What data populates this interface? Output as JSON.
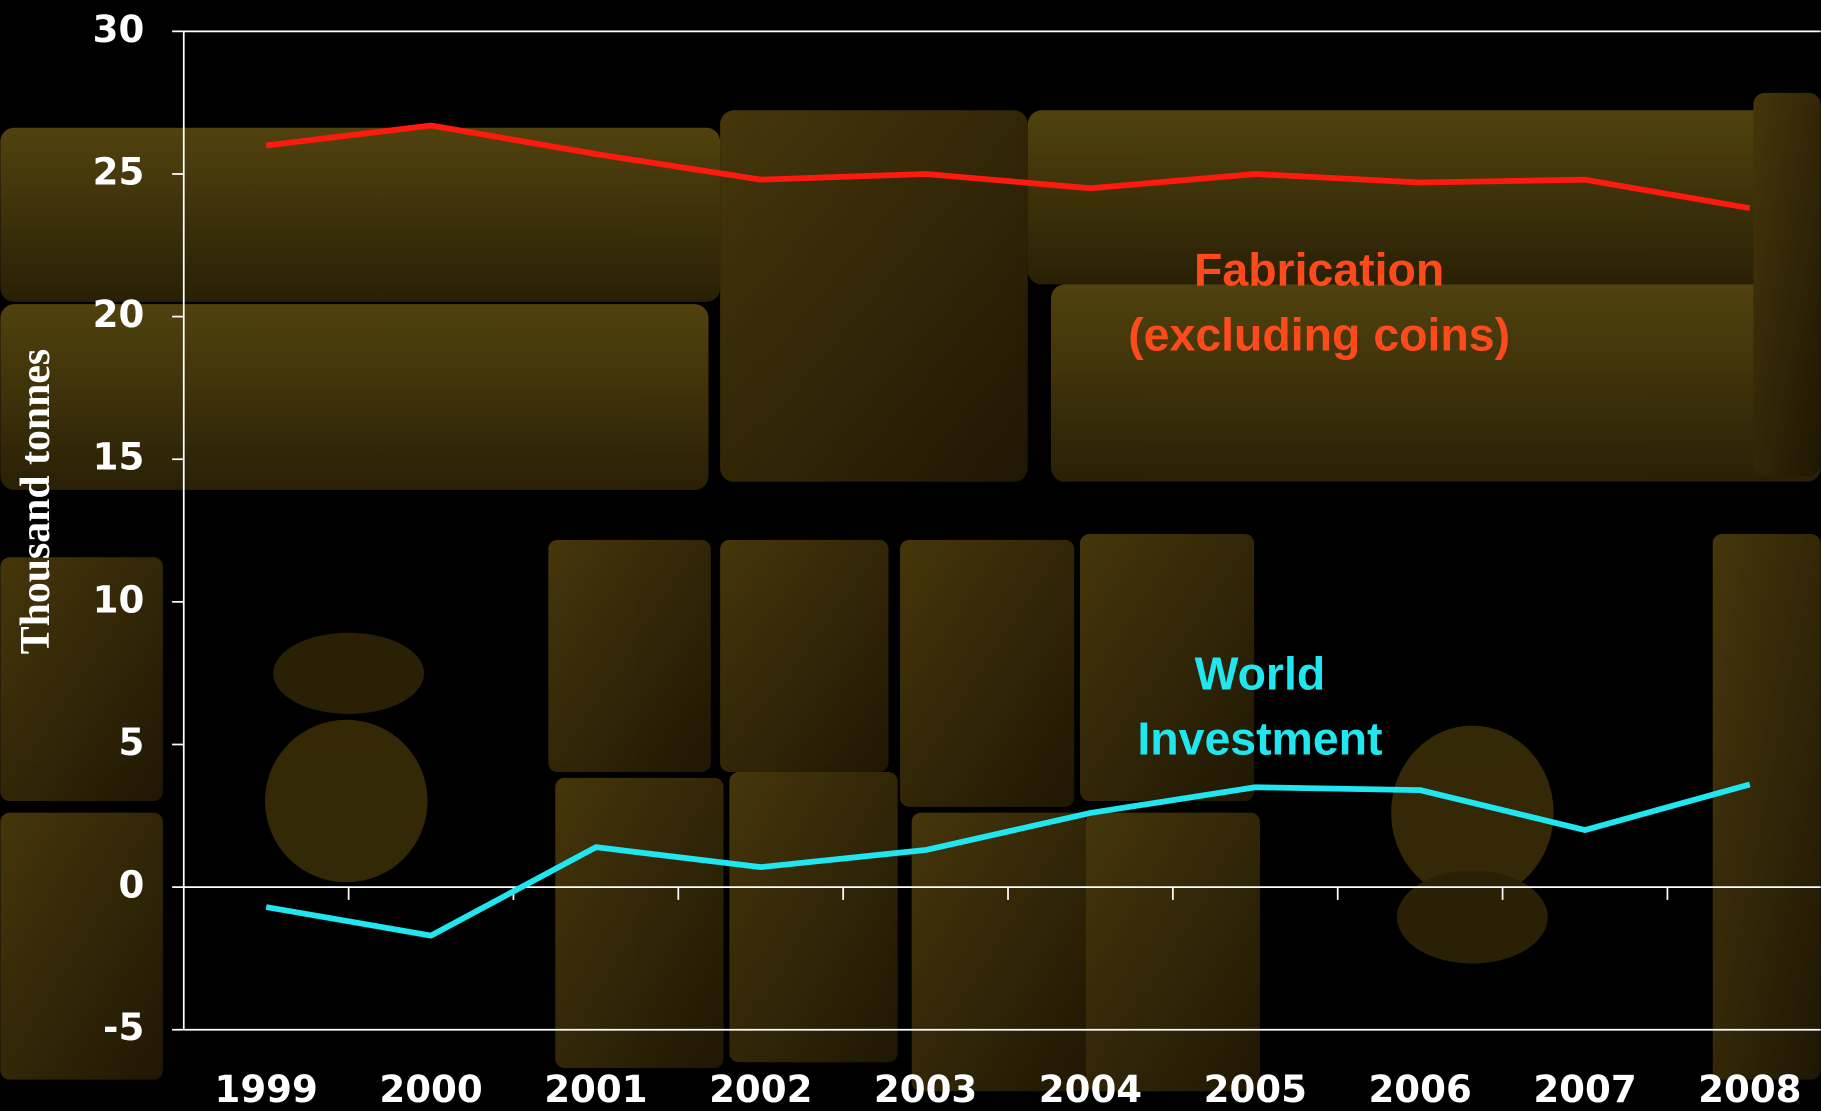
{
  "chart_data": {
    "type": "line",
    "y_label": "Thousand tonnes",
    "categories": [
      "1999",
      "2000",
      "2001",
      "2002",
      "2003",
      "2004",
      "2005",
      "2006",
      "2007",
      "2008"
    ],
    "series": [
      {
        "name": "Fabrication (excluding coins)",
        "color": "#ff1a10",
        "label_color": "#ff4a1c",
        "values": [
          26.0,
          26.7,
          25.7,
          24.8,
          25.0,
          24.5,
          25.0,
          24.7,
          24.8,
          23.8
        ]
      },
      {
        "name": "World Investment",
        "color": "#20e6f0",
        "label_color": "#20e6f0",
        "values": [
          -0.7,
          -1.7,
          1.4,
          0.7,
          1.3,
          2.6,
          3.5,
          3.4,
          2.0,
          3.6
        ]
      }
    ],
    "ylim": [
      -5,
      30
    ],
    "yticks": [
      -5,
      0,
      5,
      10,
      15,
      20,
      25,
      30
    ],
    "grid": false
  }
}
